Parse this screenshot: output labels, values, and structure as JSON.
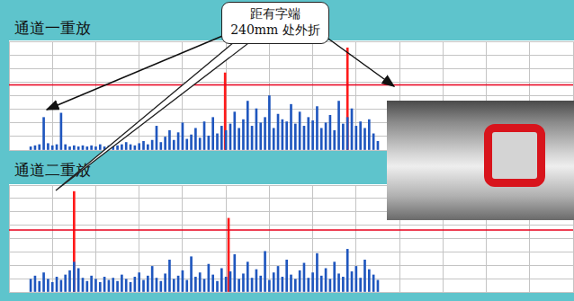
{
  "chart_data": [
    {
      "type": "bar",
      "title": "通道一重放",
      "xlim": [
        0,
        600
      ],
      "xticks": [
        0,
        50,
        100,
        150,
        200,
        250,
        300,
        350,
        400,
        450,
        500,
        550,
        600
      ],
      "ylim": [
        0,
        100
      ],
      "yticks": [
        0,
        12.5,
        25,
        37.5,
        50,
        62.5,
        75,
        87.5,
        100
      ],
      "grid": true,
      "tick_labels": false,
      "threshold": 60,
      "series": [
        {
          "color": "#1f56be",
          "x": [
            0,
            5,
            10,
            15,
            20,
            25,
            30,
            35,
            40,
            45,
            50,
            55,
            60,
            65,
            70,
            75,
            80,
            85,
            90,
            95,
            100,
            105,
            110,
            115,
            120,
            125,
            130,
            135,
            140,
            145,
            150,
            155,
            160,
            165,
            170,
            175,
            180,
            185,
            190,
            195,
            200,
            205,
            210,
            215,
            220,
            225,
            230,
            235,
            240,
            245,
            250,
            255,
            260,
            265,
            270,
            275,
            280,
            285,
            290,
            295,
            300,
            305,
            310,
            315,
            320,
            325,
            330,
            335,
            340,
            345,
            350,
            355,
            360,
            365,
            370,
            375,
            380,
            385,
            390,
            395,
            400
          ],
          "values": [
            3,
            4,
            5,
            30,
            6,
            4,
            5,
            34,
            5,
            3,
            4,
            3,
            4,
            3,
            4,
            3,
            5,
            3,
            4,
            6,
            4,
            5,
            7,
            5,
            4,
            6,
            8,
            5,
            9,
            22,
            7,
            12,
            18,
            9,
            16,
            25,
            10,
            14,
            20,
            11,
            26,
            13,
            30,
            15,
            22,
            18,
            24,
            35,
            20,
            28,
            45,
            22,
            38,
            25,
            30,
            50,
            20,
            33,
            28,
            26,
            42,
            24,
            35,
            22,
            30,
            27,
            40,
            20,
            25,
            32,
            18,
            45,
            24,
            30,
            38,
            22,
            26,
            20,
            28,
            15,
            8
          ]
        },
        {
          "color": "#ff1a1a",
          "x": [
            224,
            365
          ],
          "values": [
            71,
            94
          ]
        }
      ]
    },
    {
      "type": "bar",
      "title": "通道二重放",
      "xlim": [
        0,
        600
      ],
      "xticks": [
        0,
        50,
        100,
        150,
        200,
        250,
        300,
        350,
        400,
        450,
        500,
        550,
        600
      ],
      "ylim": [
        0,
        100
      ],
      "yticks": [
        0,
        12.5,
        25,
        37.5,
        50,
        62.5,
        75,
        87.5,
        100
      ],
      "grid": true,
      "tick_labels": false,
      "threshold": 58,
      "series": [
        {
          "color": "#1f56be",
          "x": [
            0,
            5,
            10,
            15,
            20,
            25,
            30,
            35,
            40,
            45,
            50,
            55,
            60,
            65,
            70,
            75,
            80,
            85,
            90,
            95,
            100,
            105,
            110,
            115,
            120,
            125,
            130,
            135,
            140,
            145,
            150,
            155,
            160,
            165,
            170,
            175,
            180,
            185,
            190,
            195,
            200,
            205,
            210,
            215,
            220,
            225,
            230,
            235,
            240,
            245,
            250,
            255,
            260,
            265,
            270,
            275,
            280,
            285,
            290,
            295,
            300,
            305,
            310,
            315,
            320,
            325,
            330,
            335,
            340,
            345,
            350,
            355,
            360,
            365,
            370,
            375,
            380,
            385,
            390,
            395,
            400
          ],
          "values": [
            12,
            15,
            10,
            18,
            12,
            9,
            14,
            11,
            16,
            20,
            28,
            22,
            13,
            10,
            15,
            12,
            9,
            14,
            11,
            13,
            10,
            16,
            12,
            9,
            14,
            18,
            11,
            15,
            24,
            13,
            10,
            17,
            30,
            12,
            15,
            20,
            11,
            33,
            14,
            18,
            12,
            26,
            16,
            10,
            22,
            14,
            19,
            35,
            12,
            17,
            28,
            13,
            21,
            15,
            38,
            11,
            18,
            24,
            14,
            30,
            16,
            12,
            20,
            27,
            13,
            18,
            36,
            15,
            22,
            12,
            28,
            17,
            14,
            40,
            19,
            24,
            13,
            30,
            21,
            16,
            11
          ]
        },
        {
          "color": "#ff1a1a",
          "x": [
            50,
            228
          ],
          "values": [
            94,
            69
          ]
        }
      ]
    }
  ],
  "annotation": [
    "距有字端",
    "240mm 处外折"
  ]
}
